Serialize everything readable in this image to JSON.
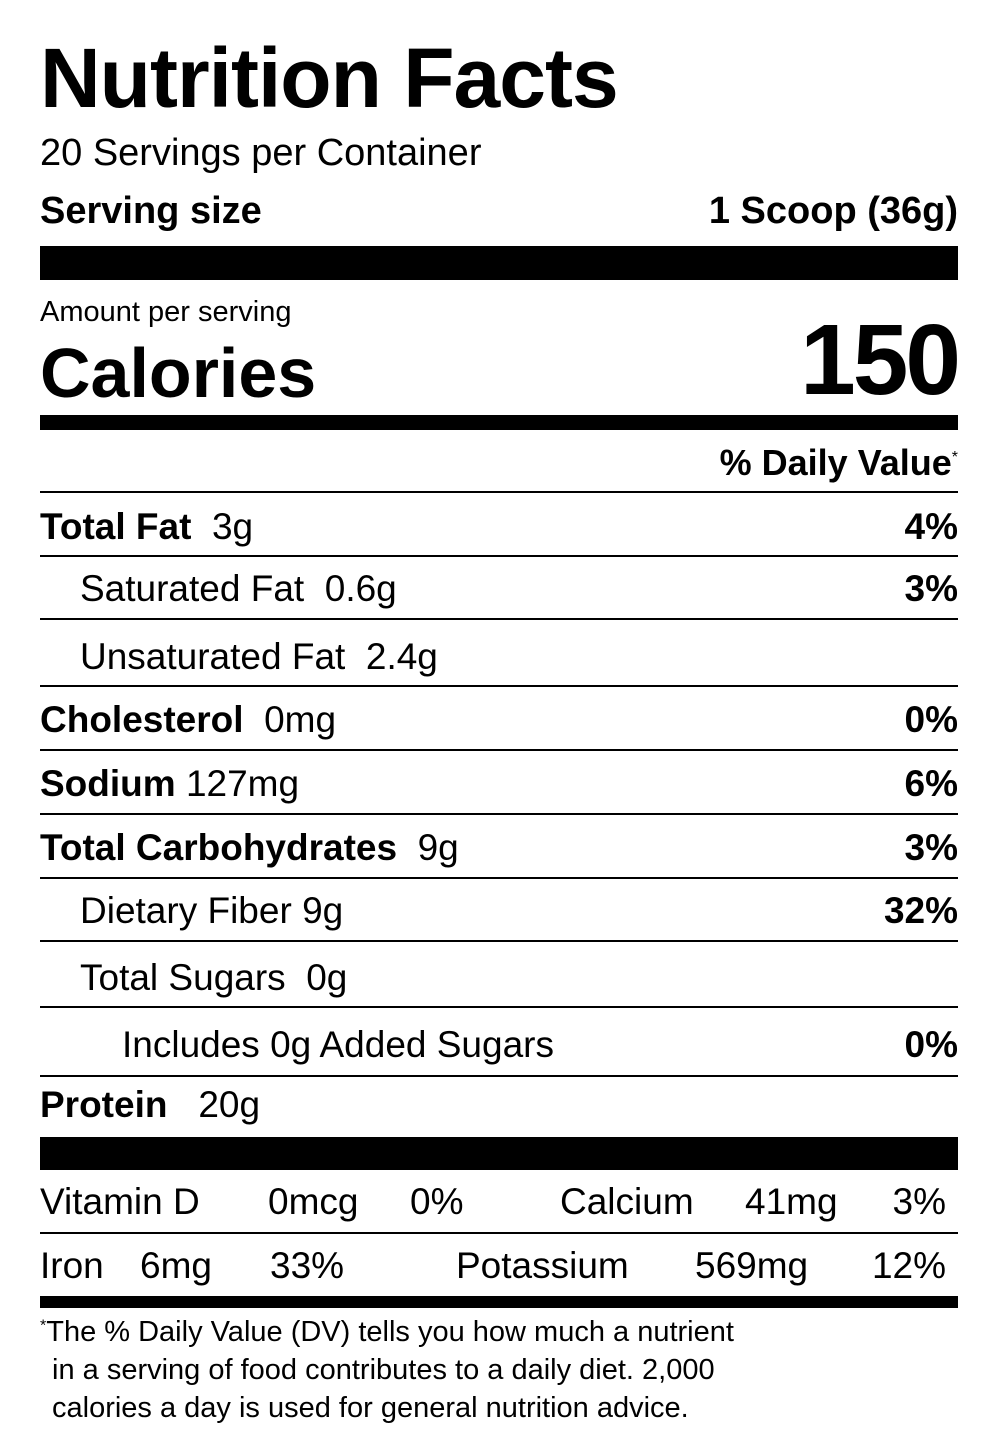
{
  "title": "Nutrition Facts",
  "servings_per_container": "20 Servings per Container",
  "serving_size": {
    "label": "Serving size",
    "value": "1 Scoop (36g)"
  },
  "amount_per_serving": "Amount per serving",
  "calories": {
    "label": "Calories",
    "value": "150"
  },
  "daily_value_header": "% Daily Value",
  "asterisk": "*",
  "nutrients": [
    {
      "name": "Total Fat",
      "amount": "3g",
      "dv": "4%"
    },
    {
      "name": "Saturated Fat",
      "amount": "0.6g",
      "dv": "3%"
    },
    {
      "name": "Unsaturated Fat",
      "amount": "2.4g",
      "dv": ""
    },
    {
      "name": "Cholesterol",
      "amount": "0mg",
      "dv": "0%"
    },
    {
      "name": "Sodium",
      "amount": "127mg",
      "dv": "6%"
    },
    {
      "name": "Total Carbohydrates",
      "amount": "9g",
      "dv": "3%"
    },
    {
      "name": "Dietary Fiber",
      "amount": "9g",
      "dv": "32%"
    },
    {
      "name": "Total Sugars",
      "amount": "0g",
      "dv": ""
    },
    {
      "name": "Includes 0g Added Sugars",
      "amount": "",
      "dv": "0%"
    },
    {
      "name": "Protein",
      "amount": "20g",
      "dv": ""
    }
  ],
  "micronutrients": [
    {
      "name": "Vitamin D",
      "amount": "0mcg",
      "dv": "0%"
    },
    {
      "name": "Calcium",
      "amount": "41mg",
      "dv": "3%"
    },
    {
      "name": "Iron",
      "amount": "6mg",
      "dv": "33%"
    },
    {
      "name": "Potassium",
      "amount": "569mg",
      "dv": "12%"
    }
  ],
  "footnote": [
    "The % Daily Value (DV) tells you how much a nutrient",
    "in a serving of food contributes to a daily diet. 2,000",
    "calories a day is used for general nutrition advice."
  ]
}
